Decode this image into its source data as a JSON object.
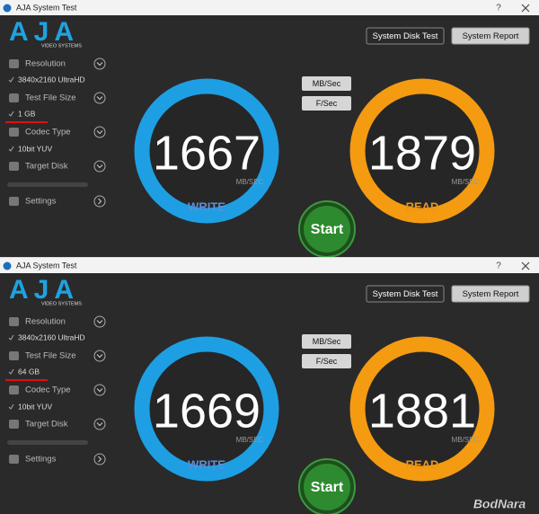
{
  "windows": [
    {
      "title": "AJA System Test",
      "help": "?",
      "logo": {
        "name": "AJA",
        "tagline": "VIDEO SYSTEMS"
      },
      "buttons": {
        "disk_test": "System Disk Test",
        "report": "System Report",
        "mb_sec": "MB/Sec",
        "f_sec": "F/Sec",
        "start": "Start"
      },
      "sidebar": {
        "resolution": {
          "label": "Resolution",
          "value": "3840x2160 UltraHD"
        },
        "file_size": {
          "label": "Test File Size",
          "value": "1 GB"
        },
        "codec": {
          "label": "Codec Type",
          "value": "10bit YUV"
        },
        "target_disk": {
          "label": "Target Disk"
        },
        "settings": {
          "label": "Settings"
        }
      },
      "write": {
        "value": 1667,
        "unit": "MB/SEC",
        "label": "WRITE"
      },
      "read": {
        "value": 1879,
        "unit": "MB/SEC",
        "label": "READ"
      }
    },
    {
      "title": "AJA System Test",
      "help": "?",
      "logo": {
        "name": "AJA",
        "tagline": "VIDEO SYSTEMS"
      },
      "buttons": {
        "disk_test": "System Disk Test",
        "report": "System Report",
        "mb_sec": "MB/Sec",
        "f_sec": "F/Sec",
        "start": "Start"
      },
      "sidebar": {
        "resolution": {
          "label": "Resolution",
          "value": "3840x2160 UltraHD"
        },
        "file_size": {
          "label": "Test File Size",
          "value": "64 GB"
        },
        "codec": {
          "label": "Codec Type",
          "value": "10bit YUV"
        },
        "target_disk": {
          "label": "Target Disk"
        },
        "settings": {
          "label": "Settings"
        }
      },
      "write": {
        "value": 1669,
        "unit": "MB/SEC",
        "label": "WRITE"
      },
      "read": {
        "value": 1881,
        "unit": "MB/SEC",
        "label": "READ"
      }
    }
  ],
  "watermark": "BodNara"
}
